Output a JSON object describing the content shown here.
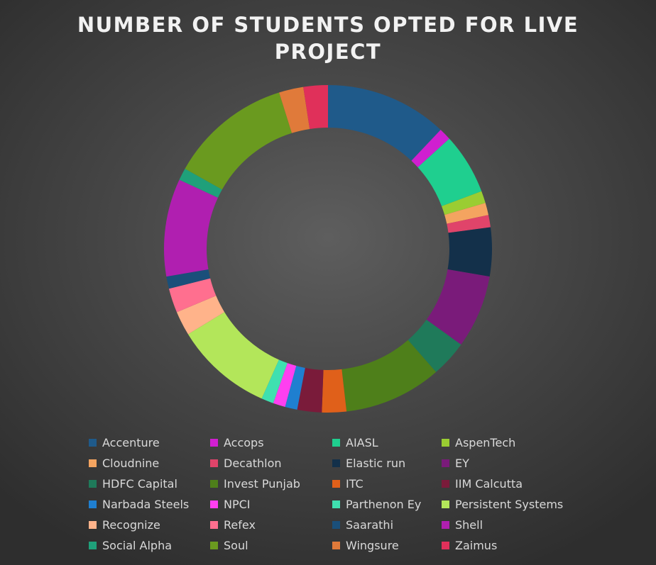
{
  "chart_data": {
    "type": "pie",
    "variant": "doughnut",
    "title_lines": [
      "NUMBER OF STUDENTS OPTED FOR LIVE",
      "PROJECT"
    ],
    "legend_position": "bottom",
    "start_angle_deg": 0,
    "series": [
      {
        "label": "Accenture",
        "value": 5,
        "color": "#1f5a8a"
      },
      {
        "label": "Accops",
        "value": 0.5,
        "color": "#d01fd0"
      },
      {
        "label": "AIASL",
        "value": 2.5,
        "color": "#1fcf8f"
      },
      {
        "label": "AspenTech",
        "value": 0.5,
        "color": "#9acd32"
      },
      {
        "label": "Cloudnine",
        "value": 0.5,
        "color": "#f4a460"
      },
      {
        "label": "Decathlon",
        "value": 0.5,
        "color": "#e0446a"
      },
      {
        "label": "Elastic run",
        "value": 2,
        "color": "#13304a"
      },
      {
        "label": "EY",
        "value": 3,
        "color": "#7a1b7a"
      },
      {
        "label": "HDFC Capital",
        "value": 1.5,
        "color": "#1f7a5a"
      },
      {
        "label": "Invest Punjab",
        "value": 4,
        "color": "#4e7f1a"
      },
      {
        "label": "ITC",
        "value": 1,
        "color": "#e0601a"
      },
      {
        "label": "IIM Calcutta",
        "value": 1,
        "color": "#7a1b3a"
      },
      {
        "label": "Narbada Steels",
        "value": 0.5,
        "color": "#1f7fd0"
      },
      {
        "label": "NPCI",
        "value": 0.5,
        "color": "#ff3ff0"
      },
      {
        "label": "Parthenon Ey",
        "value": 0.5,
        "color": "#3fe0b0"
      },
      {
        "label": "Persistent Systems",
        "value": 4,
        "color": "#b3e65a"
      },
      {
        "label": "Recognize",
        "value": 1,
        "color": "#ffb38a"
      },
      {
        "label": "Refex",
        "value": 1,
        "color": "#ff6f8f"
      },
      {
        "label": "Saarathi",
        "value": 0.5,
        "color": "#1a4f7a"
      },
      {
        "label": "Shell",
        "value": 4,
        "color": "#b01fb0"
      },
      {
        "label": "Social Alpha",
        "value": 0.5,
        "color": "#1fa07a"
      },
      {
        "label": "Soul",
        "value": 5,
        "color": "#6a9a1f"
      },
      {
        "label": "Wingsure",
        "value": 1,
        "color": "#e07a3a"
      },
      {
        "label": "Zaimus",
        "value": 1,
        "color": "#e0305a"
      }
    ]
  }
}
